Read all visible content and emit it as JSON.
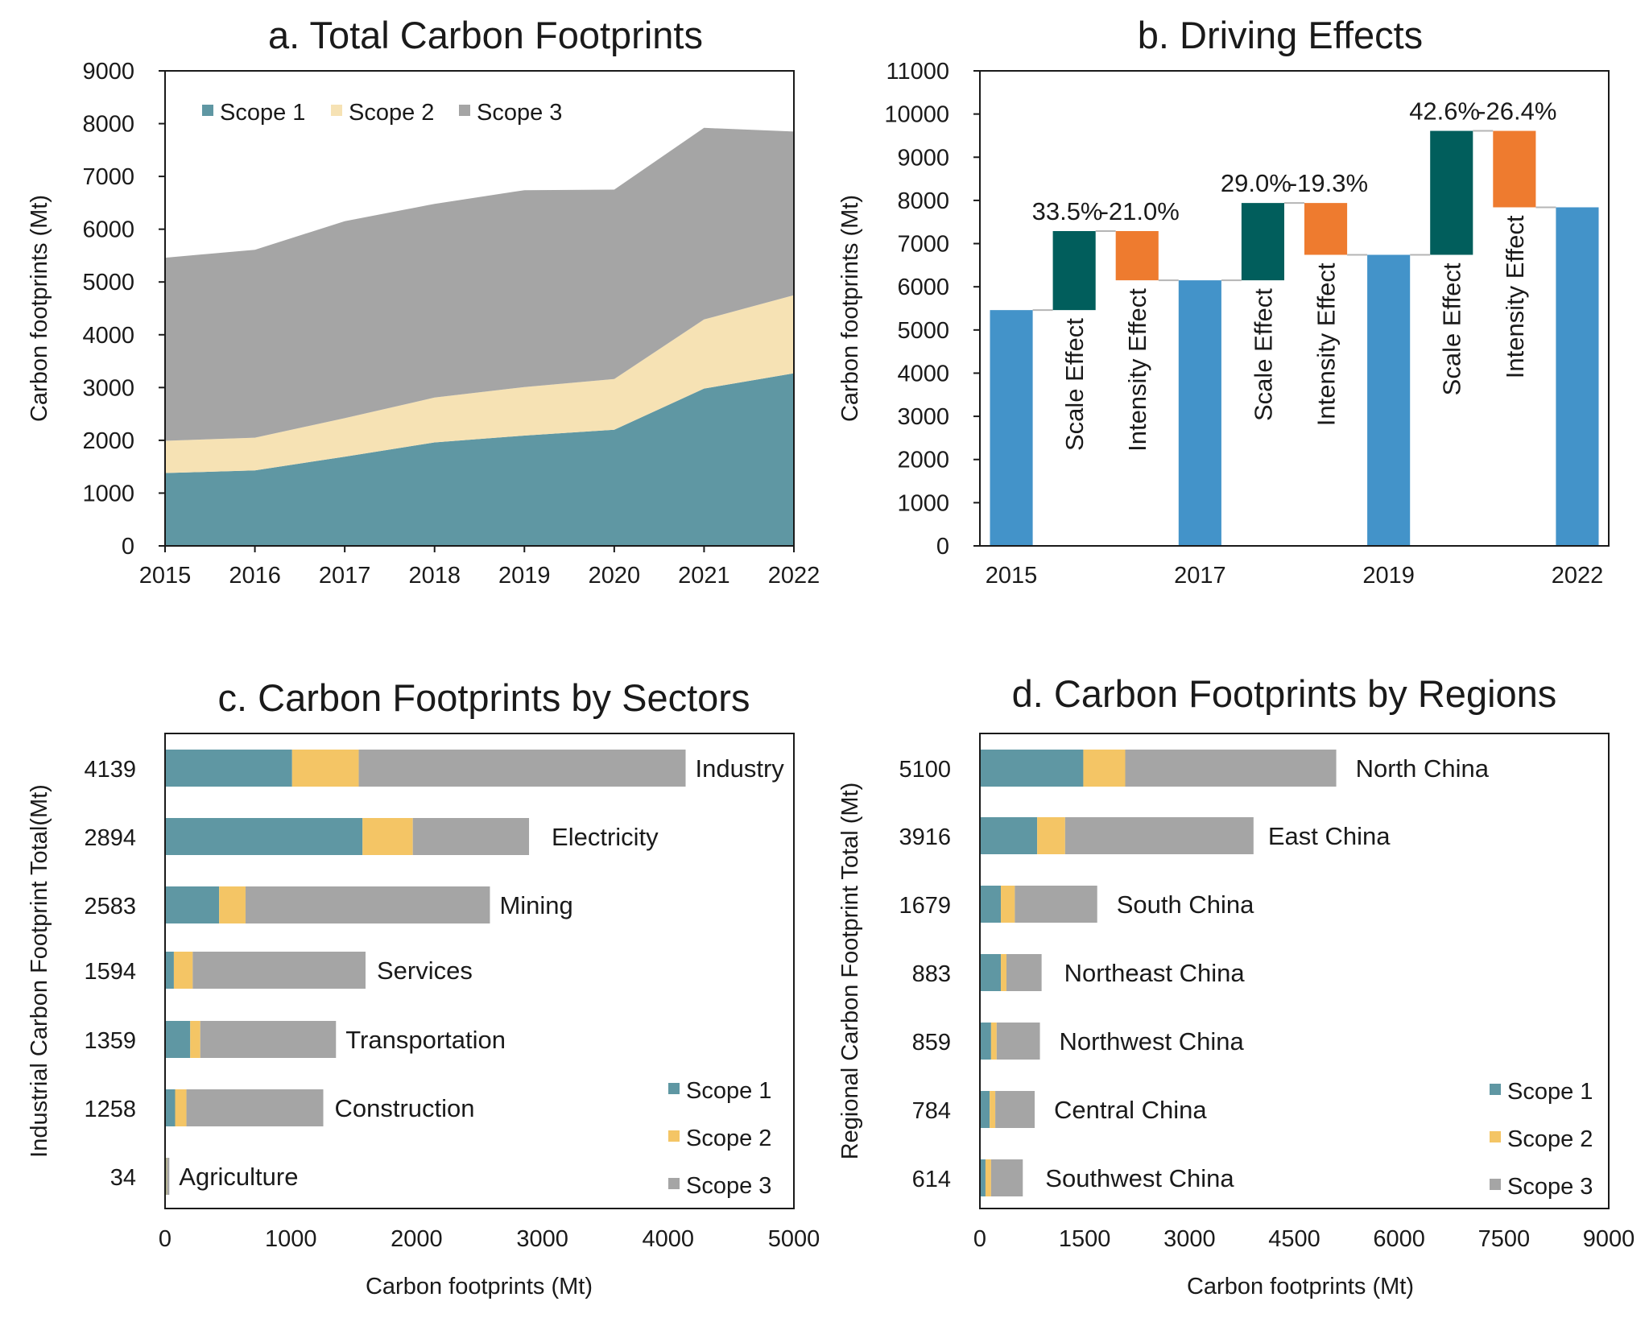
{
  "colors": {
    "scope1": "#5f97a3",
    "scope2_area": "#f6e2b4",
    "scope2_bar": "#f4c565",
    "scope3": "#a5a5a5",
    "total_bar": "#4393c9",
    "scale_effect": "#015e5c",
    "intensity_effect": "#ee7b2f"
  },
  "chart_data": [
    {
      "id": "a",
      "type": "area",
      "stacked": true,
      "title": "a. Total Carbon Footprints",
      "xlabel": "",
      "ylabel": "Carbon footprints (Mt)",
      "ylim": [
        0,
        9000
      ],
      "yticks": [
        "0",
        "1000",
        "2000",
        "3000",
        "4000",
        "5000",
        "6000",
        "7000",
        "8000",
        "9000"
      ],
      "x": [
        "2015",
        "2016",
        "2017",
        "2018",
        "2019",
        "2020",
        "2021",
        "2022"
      ],
      "series": [
        {
          "name": "Scope 1",
          "values": [
            1380,
            1430,
            1690,
            1960,
            2090,
            2200,
            2980,
            3270
          ]
        },
        {
          "name": "Scope 2",
          "values": [
            610,
            620,
            730,
            850,
            920,
            960,
            1310,
            1480
          ]
        },
        {
          "name": "Scope 3",
          "values": [
            3470,
            3560,
            3730,
            3670,
            3730,
            3590,
            3630,
            3100
          ]
        }
      ],
      "legend": "top-left"
    },
    {
      "id": "b",
      "type": "bar",
      "subtype": "waterfall",
      "title": "b. Driving Effects",
      "xlabel": "",
      "ylabel": "Carbon footprints (Mt)",
      "ylim": [
        0,
        11000
      ],
      "yticks": [
        "0",
        "1000",
        "2000",
        "3000",
        "4000",
        "5000",
        "6000",
        "7000",
        "8000",
        "9000",
        "10000",
        "11000"
      ],
      "x_labels": [
        "2015",
        "2017",
        "2019",
        "2022"
      ],
      "totals": [
        {
          "label": "2015",
          "value": 5460
        },
        {
          "label": "2017",
          "value": 6150
        },
        {
          "label": "2019",
          "value": 6740
        },
        {
          "label": "2022",
          "value": 7840
        }
      ],
      "effects": [
        {
          "name": "Scale Effect",
          "from": 5460,
          "to": 7290,
          "pct": "33.5%"
        },
        {
          "name": "Intensity Effect",
          "from": 7290,
          "to": 6150,
          "pct": "-21.0%"
        },
        {
          "name": "Scale Effect",
          "from": 6150,
          "to": 7940,
          "pct": "29.0%"
        },
        {
          "name": "Intensity Effect",
          "from": 7940,
          "to": 6740,
          "pct": "-19.3%"
        },
        {
          "name": "Scale Effect",
          "from": 6740,
          "to": 9610,
          "pct": "42.6%"
        },
        {
          "name": "Intensity Effect",
          "from": 9610,
          "to": 7840,
          "pct": "-26.4%"
        }
      ]
    },
    {
      "id": "c",
      "type": "bar",
      "orientation": "horizontal",
      "stacked": true,
      "title": "c. Carbon Footprints by Sectors",
      "xlabel": "Carbon footprints (Mt)",
      "ylabel": "Industrial Carbon Footprint Total(Mt)",
      "xlim": [
        0,
        5000
      ],
      "xticks": [
        "0",
        "1000",
        "2000",
        "3000",
        "4000",
        "5000"
      ],
      "categories": [
        "Industry",
        "Electricity",
        "Mining",
        "Services",
        "Transportation",
        "Construction",
        "Agriculture"
      ],
      "totals": [
        "4139",
        "2894",
        "2583",
        "1594",
        "1359",
        "1258",
        "34"
      ],
      "series": [
        {
          "name": "Scope 1",
          "values": [
            1010,
            1570,
            430,
            70,
            200,
            80,
            10
          ]
        },
        {
          "name": "Scope 2",
          "values": [
            530,
            400,
            210,
            150,
            80,
            90,
            5
          ]
        },
        {
          "name": "Scope 3",
          "values": [
            2599,
            924,
            1943,
            1374,
            1079,
            1088,
            19
          ]
        }
      ],
      "legend": "bottom-right"
    },
    {
      "id": "d",
      "type": "bar",
      "orientation": "horizontal",
      "stacked": true,
      "title": "d. Carbon Footprints by Regions",
      "xlabel": "Carbon footprints (Mt)",
      "ylabel": "Regional Carbon Footprint Total (Mt)",
      "xlim": [
        0,
        9000
      ],
      "xticks": [
        "0",
        "1500",
        "3000",
        "4500",
        "6000",
        "7500",
        "9000"
      ],
      "categories": [
        "North China",
        "East China",
        "South China",
        "Northeast China",
        "Northwest China",
        "Central China",
        "Southwest China"
      ],
      "totals": [
        "5100",
        "3916",
        "1679",
        "883",
        "859",
        "784",
        "614"
      ],
      "series": [
        {
          "name": "Scope 1",
          "values": [
            1480,
            820,
            300,
            300,
            160,
            140,
            80
          ]
        },
        {
          "name": "Scope 2",
          "values": [
            600,
            400,
            200,
            80,
            80,
            80,
            80
          ]
        },
        {
          "name": "Scope 3",
          "values": [
            3020,
            2696,
            1179,
            503,
            619,
            564,
            454
          ]
        }
      ],
      "legend": "bottom-right"
    }
  ]
}
